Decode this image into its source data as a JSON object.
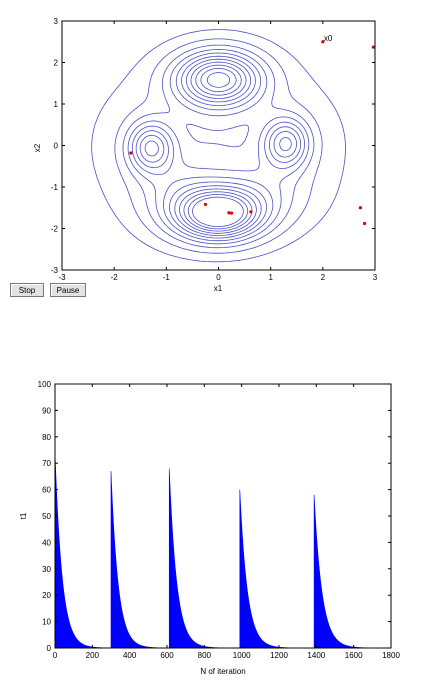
{
  "controls": {
    "stop_label": "Stop",
    "pause_label": "Pause"
  },
  "colors": {
    "contour": "#4b4fc8",
    "point": "#e00000",
    "bar": "#0000ff",
    "axis": "#000000"
  },
  "chart_data": [
    {
      "type": "scatter",
      "title": "",
      "xlabel": "x1",
      "ylabel": "x2",
      "xlim": [
        -3,
        3
      ],
      "ylim": [
        -3,
        3
      ],
      "xticks": [
        -3,
        -2,
        -1,
        0,
        1,
        2,
        3
      ],
      "yticks": [
        -3,
        -2,
        -1,
        0,
        1,
        2,
        3
      ],
      "contours": true,
      "annotation": {
        "text": "x0",
        "x": 2.0,
        "y": 2.5
      },
      "points": [
        {
          "x": 2.0,
          "y": 2.5
        },
        {
          "x": 2.97,
          "y": 2.37
        },
        {
          "x": -1.68,
          "y": -0.18
        },
        {
          "x": -0.25,
          "y": -1.42
        },
        {
          "x": 0.2,
          "y": -1.62
        },
        {
          "x": 0.25,
          "y": -1.63
        },
        {
          "x": 0.62,
          "y": -1.6
        },
        {
          "x": 2.72,
          "y": -1.5
        },
        {
          "x": 2.8,
          "y": -1.88
        }
      ]
    },
    {
      "type": "bar",
      "title": "",
      "xlabel": "N of iteration",
      "ylabel": "t1",
      "xlim": [
        0,
        1800
      ],
      "ylim": [
        0,
        100
      ],
      "xticks": [
        0,
        200,
        400,
        600,
        800,
        1000,
        1200,
        1400,
        1600,
        1800
      ],
      "yticks": [
        0,
        10,
        20,
        30,
        40,
        50,
        60,
        70,
        80,
        90,
        100
      ],
      "bursts": [
        {
          "start": 0,
          "end": 290,
          "peak": 74,
          "decay": 38
        },
        {
          "start": 300,
          "end": 600,
          "peak": 67,
          "decay": 38
        },
        {
          "start": 612,
          "end": 980,
          "peak": 68,
          "decay": 40
        },
        {
          "start": 990,
          "end": 1380,
          "peak": 60,
          "decay": 40
        },
        {
          "start": 1388,
          "end": 1680,
          "peak": 58,
          "decay": 42
        }
      ]
    }
  ]
}
